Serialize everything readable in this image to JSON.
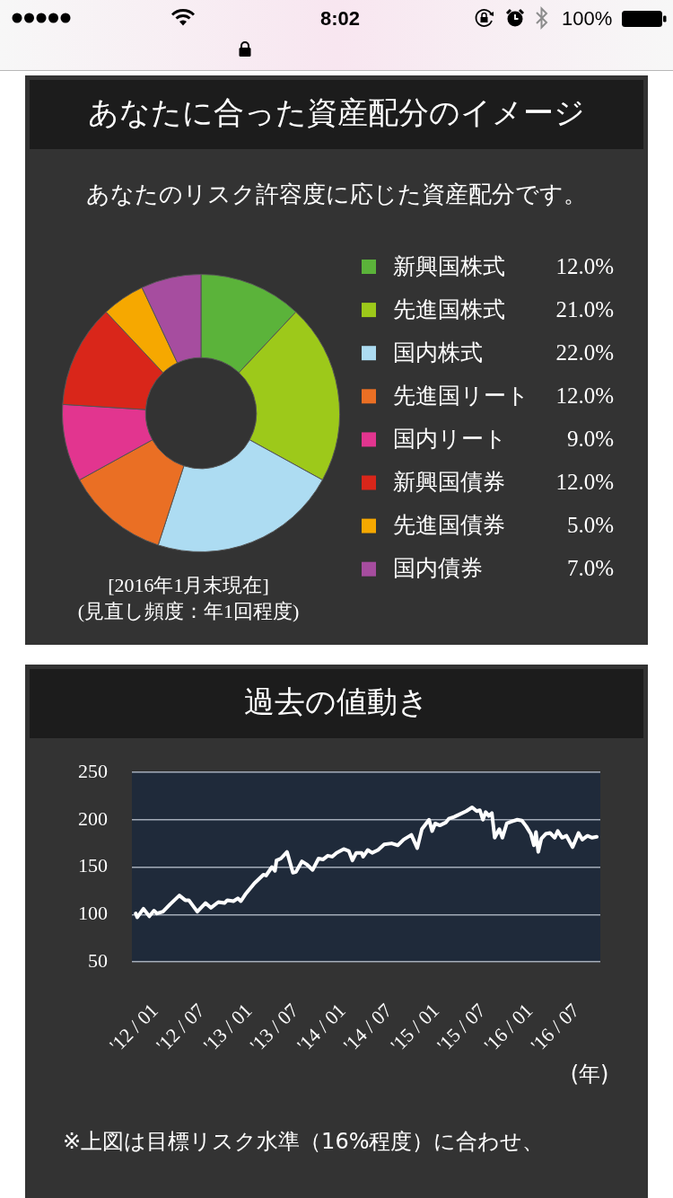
{
  "chart_data": [
    {
      "type": "donut",
      "title": "あなたに合った資産配分のイメージ",
      "subtitle": "あなたのリスク許容度に応じた資産配分です。",
      "categories": [
        "新興国株式",
        "先進国株式",
        "国内株式",
        "先進国リート",
        "国内リート",
        "新興国債券",
        "先進国債券",
        "国内債券"
      ],
      "values": [
        12,
        21,
        22,
        12,
        9,
        12,
        5,
        7
      ],
      "colors": [
        "#5bb33a",
        "#9dc91a",
        "#addcf2",
        "#ea6f24",
        "#e2358f",
        "#d9261a",
        "#f6a800",
        "#a64d9f"
      ],
      "value_labels": [
        "12.0%",
        "21.0%",
        "22.0%",
        "12.0%",
        "9.0%",
        "12.0%",
        "5.0%",
        "7.0%"
      ],
      "legend": "right",
      "annotations": [
        "[2016年1月末現在]",
        "(見直し頻度：年1回程度)",
        "8:02",
        "100%"
      ]
    },
    {
      "type": "line",
      "title": "過去の値動き",
      "xlabel": "(年)",
      "x": [
        "2011-10-16",
        "2011-10-22",
        "2011-11-15",
        "2011-12-08",
        "2011-12-26",
        "2012-01-07",
        "2012-01-30",
        "2012-02-28",
        "2012-04-03",
        "2012-04-26",
        "2012-05-10",
        "2012-06-12",
        "2012-07-14",
        "2012-08-04",
        "2012-09-02",
        "2012-09-26",
        "2012-10-07",
        "2012-10-31",
        "2012-11-17",
        "2012-11-29",
        "2012-12-16",
        "2013-01-21",
        "2013-02-25",
        "2013-03-07",
        "2013-03-30",
        "2013-04-11",
        "2013-04-17",
        "2013-05-04",
        "2013-05-28",
        "2013-06-20",
        "2013-07-02",
        "2013-07-25",
        "2013-08-12",
        "2013-09-05",
        "2013-09-28",
        "2013-10-15",
        "2013-11-03",
        "2013-11-20",
        "2013-12-07",
        "2014-01-04",
        "2014-01-24",
        "2014-02-07",
        "2014-02-22",
        "2014-03-15",
        "2014-03-21",
        "2014-04-08",
        "2014-04-25",
        "2014-05-18",
        "2014-06-11",
        "2014-07-10",
        "2014-08-03",
        "2014-08-26",
        "2014-09-25",
        "2014-10-18",
        "2014-11-05",
        "2014-12-03",
        "2014-12-15",
        "2014-12-27",
        "2015-01-14",
        "2015-02-06",
        "2015-02-18",
        "2015-03-11",
        "2015-04-04",
        "2015-04-27",
        "2015-05-20",
        "2015-06-07",
        "2015-06-19",
        "2015-07-01",
        "2015-07-12",
        "2015-07-24",
        "2015-08-05",
        "2015-08-16",
        "2015-09-03",
        "2015-09-15",
        "2015-10-02",
        "2015-10-20",
        "2015-11-12",
        "2015-11-30",
        "2015-12-17",
        "2016-01-04",
        "2016-01-16",
        "2016-01-24",
        "2016-02-02",
        "2016-02-14",
        "2016-03-02",
        "2016-03-19",
        "2016-04-06",
        "2016-04-18",
        "2016-05-05",
        "2016-05-22",
        "2016-06-15",
        "2016-07-08",
        "2016-07-23",
        "2016-08-12",
        "2016-08-30",
        "2016-09-17"
      ],
      "series": [
        {
          "color": "#ffffff",
          "values": [
            101,
            97,
            106,
            98,
            104,
            101,
            103,
            111,
            120,
            115,
            115,
            103,
            112,
            107,
            113,
            112,
            115,
            114,
            117,
            114,
            121,
            133,
            142,
            141,
            150,
            146,
            157,
            159,
            166,
            144,
            145,
            156,
            153,
            147,
            159,
            158,
            162,
            161,
            165,
            169,
            167,
            157,
            165,
            165,
            161,
            168,
            165,
            168,
            174,
            175,
            173,
            179,
            184,
            170,
            190,
            200,
            188,
            196,
            194,
            197,
            201,
            203,
            206,
            209,
            213,
            209,
            210,
            200,
            208,
            204,
            207,
            181,
            190,
            181,
            196,
            198,
            200,
            199,
            193,
            185,
            173,
            187,
            166,
            180,
            185,
            186,
            181,
            188,
            181,
            183,
            171,
            186,
            179,
            183,
            181,
            182
          ]
        }
      ],
      "xlim": [
        "2011-10",
        "2016-10"
      ],
      "xticks": [
        {
          "value": "2012-01",
          "label": "'12 / 01"
        },
        {
          "value": "2012-07",
          "label": "'12 / 07"
        },
        {
          "value": "2013-01",
          "label": "'13 / 01"
        },
        {
          "value": "2013-07",
          "label": "'13 / 07"
        },
        {
          "value": "2014-01",
          "label": "'14 / 01"
        },
        {
          "value": "2014-07",
          "label": "'14 / 07"
        },
        {
          "value": "2015-01",
          "label": "'15 / 01"
        },
        {
          "value": "2015-07",
          "label": "'15 / 07"
        },
        {
          "value": "2016-01",
          "label": "'16 / 01"
        },
        {
          "value": "2016-07",
          "label": "'16 / 07"
        }
      ],
      "ylim": [
        50,
        250
      ],
      "yticks": [
        50,
        100,
        150,
        200,
        250
      ],
      "grid": "y",
      "annotations": [
        "※上図は目標リスク水準（16%程度）に合わせ、"
      ]
    }
  ]
}
